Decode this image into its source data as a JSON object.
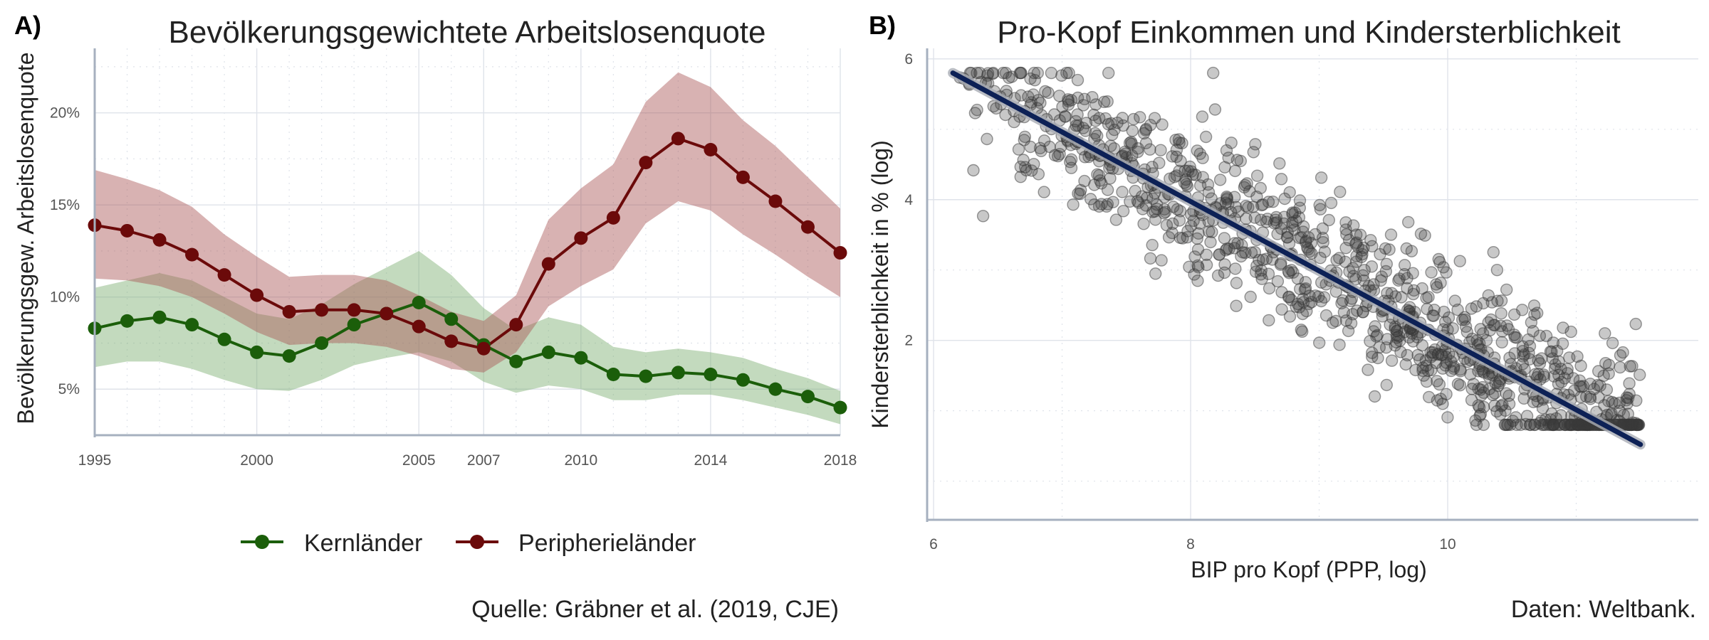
{
  "colors": {
    "core": "#1b5e0a",
    "periphery": "#6b0a0a",
    "core_band": "#7aad6e",
    "periphery_band": "#a85454",
    "fit_line": "#0d2156",
    "fit_band": "#a9adb5",
    "points": "#3a3a3a",
    "axis": "#a6b0bf",
    "grid": "#dfe3ea"
  },
  "chart_data": [
    {
      "panel": "A)",
      "type": "line",
      "title": "Bevölkerungsgewichtete Arbeitslosenquote",
      "xlabel": "",
      "ylabel": "Bevölkerungsgew. Arbeitslosenquote",
      "xlim": [
        1995,
        2018
      ],
      "ylim": [
        2.5,
        23.5
      ],
      "x_ticks": [
        1995,
        2000,
        2005,
        2007,
        2010,
        2014,
        2018
      ],
      "y_ticks": [
        5,
        10,
        15,
        20
      ],
      "y_tick_labels": [
        "5%",
        "10%",
        "15%",
        "20%"
      ],
      "grid": true,
      "legend_position": "bottom",
      "x": [
        1995,
        1996,
        1997,
        1998,
        1999,
        2000,
        2001,
        2002,
        2003,
        2004,
        2005,
        2006,
        2007,
        2008,
        2009,
        2010,
        2011,
        2012,
        2013,
        2014,
        2015,
        2016,
        2017,
        2018
      ],
      "series": [
        {
          "name": "Kernländer",
          "values": [
            8.3,
            8.7,
            8.9,
            8.5,
            7.7,
            7.0,
            6.8,
            7.5,
            8.5,
            9.1,
            9.7,
            8.8,
            7.4,
            6.5,
            7.0,
            6.7,
            5.8,
            5.7,
            5.9,
            5.8,
            5.5,
            5.0,
            4.6,
            4.0
          ],
          "lower": [
            6.2,
            6.5,
            6.5,
            6.1,
            5.5,
            5.0,
            4.9,
            5.5,
            6.3,
            6.7,
            7.0,
            6.5,
            5.4,
            4.8,
            5.2,
            5.0,
            4.4,
            4.4,
            4.7,
            4.7,
            4.4,
            4.0,
            3.6,
            3.1
          ],
          "upper": [
            10.5,
            10.9,
            11.3,
            10.9,
            10.0,
            9.1,
            8.8,
            9.6,
            10.7,
            11.6,
            12.5,
            11.2,
            9.4,
            8.2,
            8.9,
            8.5,
            7.3,
            7.0,
            7.2,
            7.0,
            6.7,
            6.1,
            5.6,
            4.9
          ]
        },
        {
          "name": "Peripherieländer",
          "values": [
            13.9,
            13.6,
            13.1,
            12.3,
            11.2,
            10.1,
            9.2,
            9.3,
            9.3,
            9.1,
            8.4,
            7.6,
            7.2,
            8.5,
            11.8,
            13.2,
            14.3,
            17.3,
            18.6,
            18.0,
            16.5,
            15.2,
            13.8,
            12.4
          ],
          "lower": [
            11.0,
            10.9,
            10.6,
            10.0,
            9.1,
            8.1,
            7.4,
            7.5,
            7.5,
            7.3,
            6.8,
            6.1,
            5.9,
            7.0,
            9.5,
            10.6,
            11.5,
            14.0,
            15.2,
            14.7,
            13.4,
            12.3,
            11.1,
            10.0
          ],
          "upper": [
            16.9,
            16.4,
            15.8,
            14.9,
            13.4,
            12.2,
            11.1,
            11.2,
            11.2,
            10.9,
            10.1,
            9.2,
            8.7,
            10.1,
            14.2,
            15.9,
            17.2,
            20.6,
            22.2,
            21.4,
            19.6,
            18.2,
            16.5,
            14.8
          ]
        }
      ],
      "caption": "Quelle: Gräbner et al. (2019, CJE)"
    },
    {
      "panel": "B)",
      "type": "scatter",
      "title": "Pro-Kopf Einkommen und Kindersterblichkeit",
      "xlabel": "BIP pro Kopf (PPP, log)",
      "ylabel": "Kindersterblichkeit in % (log)",
      "xlim": [
        5.95,
        11.95
      ],
      "ylim": [
        -0.55,
        6.15
      ],
      "x_ticks": [
        6,
        8,
        10
      ],
      "y_ticks": [
        2,
        4,
        6
      ],
      "grid": true,
      "n_points": 1100,
      "point_cloud": {
        "x_range": [
          6.15,
          11.5
        ],
        "trend": {
          "intercept": 11.87,
          "slope": -0.987
        },
        "spread_sd": 0.55
      },
      "fit": {
        "x0": 6.15,
        "y0": 5.8,
        "x1": 11.5,
        "y1": 0.52
      },
      "caption": "Daten: Weltbank."
    }
  ]
}
